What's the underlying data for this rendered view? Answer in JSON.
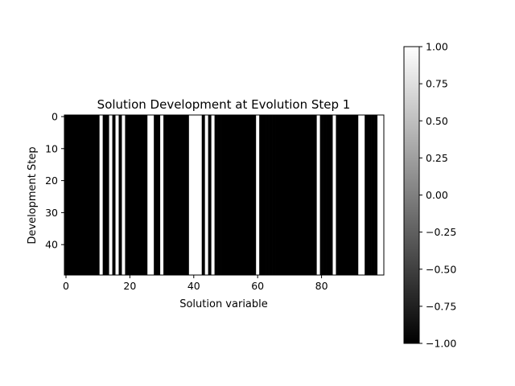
{
  "chart_data": {
    "type": "heatmap",
    "title": "Solution Development at Evolution Step 1",
    "xlabel": "Solution variable",
    "ylabel": "Development Step",
    "xlim": [
      -0.5,
      99.5
    ],
    "ylim": [
      49.5,
      -0.5
    ],
    "n_columns": 100,
    "n_rows": 50,
    "xticks": [
      "0",
      "20",
      "40",
      "60",
      "80"
    ],
    "xtick_values": [
      0,
      20,
      40,
      60,
      80
    ],
    "yticks": [
      "0",
      "10",
      "20",
      "30",
      "40"
    ],
    "ytick_values": [
      0,
      10,
      20,
      30,
      40
    ],
    "column_values": [
      -1,
      -1,
      -1,
      -1,
      -1,
      -1,
      -1,
      -1,
      -1,
      -1,
      -1,
      1,
      -1,
      -1,
      1,
      -1,
      1,
      -1,
      1,
      -1,
      -1,
      -1,
      -1,
      -1,
      -1,
      -1,
      1,
      1,
      -1,
      -1,
      1,
      -1,
      -1,
      -1,
      -1,
      -1,
      -1,
      -1,
      -1,
      1,
      1,
      1,
      1,
      -1,
      1,
      -1,
      1,
      -1,
      -1,
      -1,
      -1,
      -1,
      -1,
      -1,
      -1,
      -1,
      -1,
      -1,
      -1,
      -1,
      1,
      -1,
      -1,
      -1,
      -1,
      -1,
      -1,
      -1,
      -1,
      -1,
      -1,
      -1,
      -1,
      -1,
      -1,
      -1,
      -1,
      -1,
      -1,
      1,
      -1,
      -1,
      -1,
      -1,
      1,
      -1,
      -1,
      -1,
      -1,
      -1,
      -1,
      -1,
      1,
      1,
      -1,
      -1,
      -1,
      -1,
      1,
      1
    ],
    "note_rows_identical": true,
    "colorbar": {
      "colormap": "gray",
      "vmin": -1.0,
      "vmax": 1.0,
      "ticks": [
        "1.00",
        "0.75",
        "0.50",
        "0.25",
        "0.00",
        "−0.25",
        "−0.50",
        "−0.75",
        "−1.00"
      ],
      "tick_values": [
        1.0,
        0.75,
        0.5,
        0.25,
        0.0,
        -0.25,
        -0.5,
        -0.75,
        -1.0
      ]
    }
  },
  "colors": {
    "low": "#000000",
    "high": "#ffffff",
    "axis": "#000000"
  }
}
